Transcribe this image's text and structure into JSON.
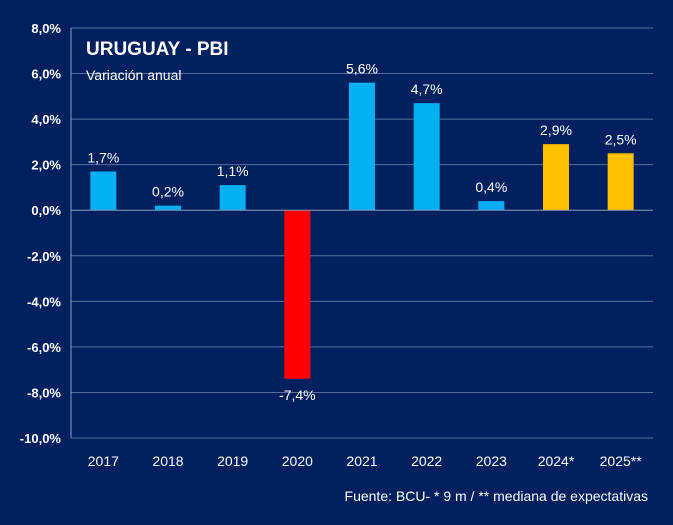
{
  "chart_data": {
    "type": "bar",
    "title": "URUGUAY - PBI",
    "subtitle": "Variación anual",
    "categories": [
      "2017",
      "2018",
      "2019",
      "2020",
      "2021",
      "2022",
      "2023",
      "2024*",
      "2025**"
    ],
    "values": [
      1.7,
      0.2,
      1.1,
      -7.4,
      5.6,
      4.7,
      0.4,
      2.9,
      2.5
    ],
    "data_labels": [
      "1,7%",
      "0,2%",
      "1,1%",
      "-7,4%",
      "5,6%",
      "4,7%",
      "0,4%",
      "2,9%",
      "2,5%"
    ],
    "ylim": [
      -10,
      8
    ],
    "y_ticks": [
      8,
      6,
      4,
      2,
      0,
      -2,
      -4,
      -6,
      -8,
      -10
    ],
    "y_tick_labels": [
      "8,0%",
      "6,0%",
      "4,0%",
      "2,0%",
      "0,0%",
      "-2,0%",
      "-4,0%",
      "-6,0%",
      "-8,0%",
      "-10,0%"
    ],
    "grid": true,
    "bar_colors": [
      "#00b0f0",
      "#00b0f0",
      "#00b0f0",
      "#ff0000",
      "#00b0f0",
      "#00b0f0",
      "#00b0f0",
      "#ffc000",
      "#ffc000"
    ],
    "colors": {
      "background": "#002060",
      "grid": "#5a6f9c",
      "axis": "#8c9bbd",
      "text": "#ffffff"
    },
    "source": "Fuente: BCU- * 9 m / ** mediana de expectativas"
  }
}
